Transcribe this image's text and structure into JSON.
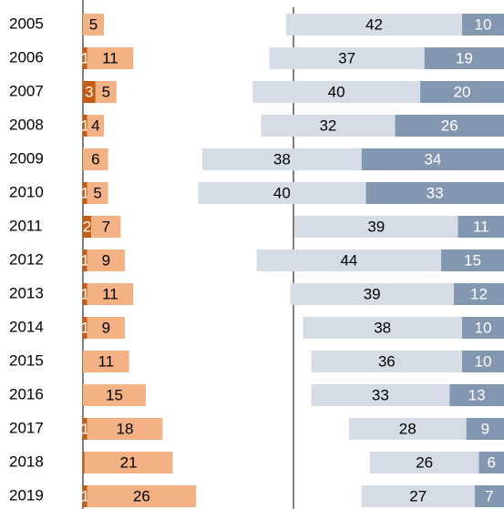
{
  "chart_data": [
    {
      "type": "bar",
      "stacked": true,
      "orientation": "horizontal",
      "categories": [
        "2005",
        "2006",
        "2007",
        "2008",
        "2009",
        "2010",
        "2011",
        "2012",
        "2013",
        "2014",
        "2015",
        "2016",
        "2017",
        "2018",
        "2019"
      ],
      "xlim": [
        0,
        50
      ],
      "series": [
        {
          "color": "#c55a11",
          "values": [
            null,
            1,
            3,
            1,
            null,
            1,
            2,
            1,
            1,
            1,
            null,
            null,
            1,
            0.4,
            1
          ],
          "value_labels": [
            null,
            "1",
            "3",
            "1",
            null,
            "1",
            "2",
            "1",
            "1",
            "1",
            null,
            null,
            "1",
            null,
            "1"
          ]
        },
        {
          "color": "#f4b183",
          "values": [
            5,
            11,
            5,
            4,
            6,
            5,
            7,
            9,
            11,
            9,
            11,
            15,
            18,
            21,
            26
          ]
        }
      ]
    },
    {
      "type": "bar",
      "stacked": true,
      "orientation": "horizontal",
      "direction": "right-to-left",
      "xlim": [
        0,
        72
      ],
      "series": [
        {
          "color": "#8497b0",
          "values": [
            10,
            19,
            20,
            26,
            34,
            33,
            11,
            15,
            12,
            10,
            10,
            13,
            9,
            6,
            7
          ]
        },
        {
          "color": "#d6dce5",
          "values": [
            42,
            37,
            40,
            32,
            38,
            40,
            39,
            44,
            39,
            38,
            36,
            33,
            28,
            26,
            27
          ]
        }
      ]
    }
  ]
}
